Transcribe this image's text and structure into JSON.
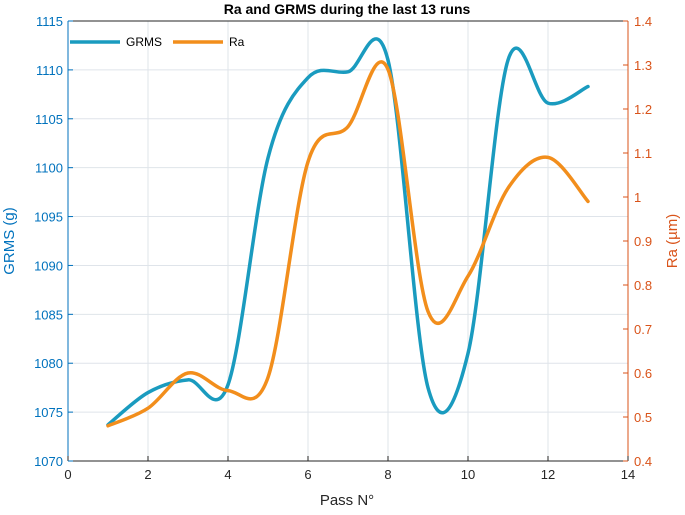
{
  "chart_data": {
    "type": "line",
    "title": "Ra and GRMS during the last 13 runs",
    "xlabel": "Pass N°",
    "ylabel_left": "GRMS (g)",
    "ylabel_right": "Ra (µm)",
    "xlim": [
      0,
      14
    ],
    "xticks": [
      "0",
      "2",
      "4",
      "6",
      "8",
      "10",
      "12",
      "14"
    ],
    "ylim_left": [
      1070,
      1115
    ],
    "yticks_left": [
      "1070",
      "1075",
      "1080",
      "1085",
      "1090",
      "1095",
      "1100",
      "1105",
      "1110",
      "1115"
    ],
    "ylim_right": [
      0.4,
      1.4
    ],
    "yticks_right": [
      "0.4",
      "0.5",
      "0.6",
      "0.7",
      "0.8",
      "0.9",
      "1",
      "1.1",
      "1.2",
      "1.3",
      "1.4"
    ],
    "grid": true,
    "legend_position": "top-left",
    "series": [
      {
        "name": "GRMS",
        "axis": "left",
        "color": "#1a9bbf",
        "x": [
          1,
          2,
          3,
          4,
          5,
          6,
          7,
          8,
          9,
          10,
          11,
          12,
          13
        ],
        "values": [
          1073.7,
          1077.0,
          1078.3,
          1077.8,
          1101.0,
          1109.2,
          1109.8,
          1111.0,
          1077.5,
          1081.0,
          1111.0,
          1106.6,
          1108.3
        ]
      },
      {
        "name": "Ra",
        "axis": "right",
        "color": "#f28e1c",
        "x": [
          1,
          2,
          3,
          4,
          5,
          6,
          7,
          8,
          9,
          10,
          11,
          12,
          13
        ],
        "values": [
          0.48,
          0.52,
          0.6,
          0.56,
          0.59,
          1.08,
          1.16,
          1.29,
          0.74,
          0.82,
          1.02,
          1.09,
          0.99
        ]
      }
    ]
  }
}
